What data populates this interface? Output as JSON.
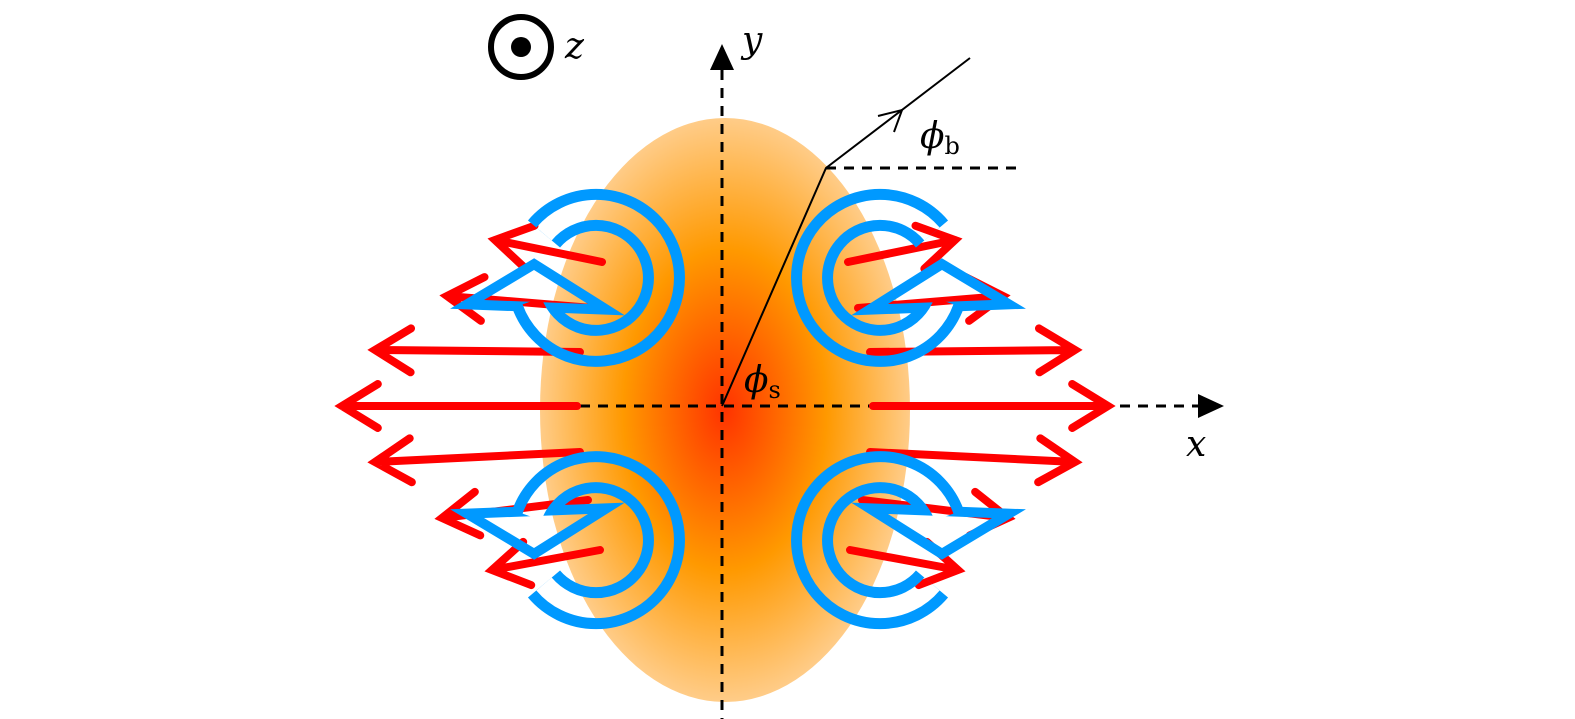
{
  "labels": {
    "z_axis": "z",
    "y_axis": "y",
    "x_axis": "x",
    "phi_s": "ϕ",
    "phi_s_sub": "s",
    "phi_b": "ϕ",
    "phi_b_sub": "b"
  },
  "colors": {
    "flow_arrows": "#ff0000",
    "vortex_arrows": "#0099ff",
    "core": "#ff3300",
    "halo": "#ff9900"
  }
}
